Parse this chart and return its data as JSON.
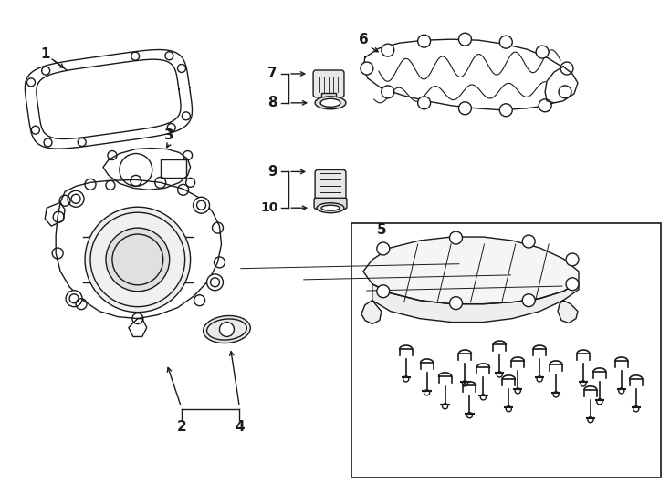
{
  "bg_color": "#ffffff",
  "line_color": "#1a1a1a",
  "lw": 1.0,
  "fig_w": 7.34,
  "fig_h": 5.4,
  "dpi": 100
}
